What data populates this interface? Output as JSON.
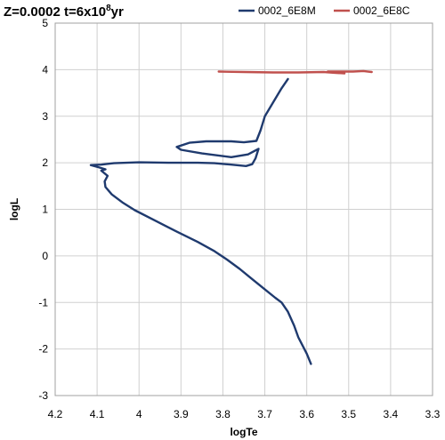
{
  "chart_data": {
    "type": "line",
    "title_main": "Z=0.0002 t=6x10",
    "title_sup": "8",
    "title_end": "yr",
    "xlabel": "logTe",
    "ylabel": "logL",
    "xlim": [
      4.2,
      3.3
    ],
    "ylim": [
      -3,
      5
    ],
    "x_reversed": true,
    "x_ticks": [
      "4.2",
      "4.1",
      "4",
      "3.9",
      "3.8",
      "3.7",
      "3.6",
      "3.5",
      "3.4",
      "3.3"
    ],
    "y_ticks": [
      "-3",
      "-2",
      "-1",
      "0",
      "1",
      "2",
      "3",
      "4",
      "5"
    ],
    "grid": true,
    "legend_position": "top-right",
    "series": [
      {
        "name": "0002_6E8M",
        "color": "#1f3a6e",
        "points": [
          [
            3.59,
            -2.32
          ],
          [
            3.6,
            -2.1
          ],
          [
            3.62,
            -1.75
          ],
          [
            3.63,
            -1.5
          ],
          [
            3.645,
            -1.2
          ],
          [
            3.66,
            -1.0
          ],
          [
            3.675,
            -0.9
          ],
          [
            3.7,
            -0.72
          ],
          [
            3.73,
            -0.5
          ],
          [
            3.76,
            -0.28
          ],
          [
            3.79,
            -0.08
          ],
          [
            3.82,
            0.1
          ],
          [
            3.86,
            0.3
          ],
          [
            3.91,
            0.52
          ],
          [
            3.96,
            0.75
          ],
          [
            4.01,
            0.98
          ],
          [
            4.04,
            1.15
          ],
          [
            4.065,
            1.32
          ],
          [
            4.08,
            1.48
          ],
          [
            4.082,
            1.6
          ],
          [
            4.075,
            1.72
          ],
          [
            4.09,
            1.83
          ],
          [
            4.08,
            1.86
          ],
          [
            4.095,
            1.9
          ],
          [
            4.115,
            1.95
          ],
          [
            4.09,
            1.96
          ],
          [
            4.06,
            1.99
          ],
          [
            4.0,
            2.01
          ],
          [
            3.93,
            2.0
          ],
          [
            3.86,
            2.0
          ],
          [
            3.82,
            1.99
          ],
          [
            3.78,
            1.96
          ],
          [
            3.745,
            1.93
          ],
          [
            3.73,
            1.97
          ],
          [
            3.722,
            2.1
          ],
          [
            3.715,
            2.3
          ],
          [
            3.74,
            2.18
          ],
          [
            3.78,
            2.12
          ],
          [
            3.85,
            2.2
          ],
          [
            3.9,
            2.28
          ],
          [
            3.91,
            2.34
          ],
          [
            3.88,
            2.43
          ],
          [
            3.84,
            2.46
          ],
          [
            3.78,
            2.46
          ],
          [
            3.75,
            2.44
          ],
          [
            3.72,
            2.47
          ],
          [
            3.71,
            2.7
          ],
          [
            3.7,
            3.0
          ],
          [
            3.68,
            3.3
          ],
          [
            3.66,
            3.6
          ],
          [
            3.645,
            3.8
          ]
        ]
      },
      {
        "name": "0002_6E8C",
        "color": "#c0504d",
        "points": [
          [
            3.81,
            3.96
          ],
          [
            3.75,
            3.95
          ],
          [
            3.68,
            3.94
          ],
          [
            3.62,
            3.94
          ],
          [
            3.56,
            3.95
          ],
          [
            3.53,
            3.93
          ],
          [
            3.51,
            3.92
          ],
          [
            3.55,
            3.96
          ],
          [
            3.49,
            3.96
          ],
          [
            3.465,
            3.97
          ],
          [
            3.445,
            3.95
          ]
        ]
      }
    ]
  }
}
